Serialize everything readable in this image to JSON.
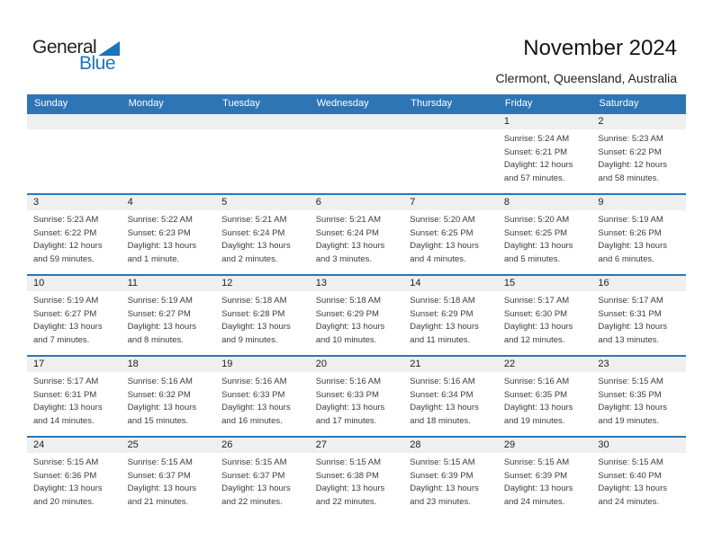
{
  "logo": {
    "part1": "General",
    "part2": "Blue",
    "blue_hex": "#1c75bc",
    "dark_hex": "#231f20"
  },
  "title": "November 2024",
  "subtitle": "Clermont, Queensland, Australia",
  "colors": {
    "accent": "#2e75b6",
    "band": "#efefef",
    "header_text": "#ffffff",
    "logo_blue": "#1c75bc"
  },
  "calendar": {
    "day_headers": [
      "Sunday",
      "Monday",
      "Tuesday",
      "Wednesday",
      "Thursday",
      "Friday",
      "Saturday"
    ],
    "weeks": [
      [
        null,
        null,
        null,
        null,
        null,
        {
          "date": "1",
          "sunrise": "Sunrise: 5:24 AM",
          "sunset": "Sunset: 6:21 PM",
          "daylight": "Daylight: 12 hours and 57 minutes."
        },
        {
          "date": "2",
          "sunrise": "Sunrise: 5:23 AM",
          "sunset": "Sunset: 6:22 PM",
          "daylight": "Daylight: 12 hours and 58 minutes."
        }
      ],
      [
        {
          "date": "3",
          "sunrise": "Sunrise: 5:23 AM",
          "sunset": "Sunset: 6:22 PM",
          "daylight": "Daylight: 12 hours and 59 minutes."
        },
        {
          "date": "4",
          "sunrise": "Sunrise: 5:22 AM",
          "sunset": "Sunset: 6:23 PM",
          "daylight": "Daylight: 13 hours and 1 minute."
        },
        {
          "date": "5",
          "sunrise": "Sunrise: 5:21 AM",
          "sunset": "Sunset: 6:24 PM",
          "daylight": "Daylight: 13 hours and 2 minutes."
        },
        {
          "date": "6",
          "sunrise": "Sunrise: 5:21 AM",
          "sunset": "Sunset: 6:24 PM",
          "daylight": "Daylight: 13 hours and 3 minutes."
        },
        {
          "date": "7",
          "sunrise": "Sunrise: 5:20 AM",
          "sunset": "Sunset: 6:25 PM",
          "daylight": "Daylight: 13 hours and 4 minutes."
        },
        {
          "date": "8",
          "sunrise": "Sunrise: 5:20 AM",
          "sunset": "Sunset: 6:25 PM",
          "daylight": "Daylight: 13 hours and 5 minutes."
        },
        {
          "date": "9",
          "sunrise": "Sunrise: 5:19 AM",
          "sunset": "Sunset: 6:26 PM",
          "daylight": "Daylight: 13 hours and 6 minutes."
        }
      ],
      [
        {
          "date": "10",
          "sunrise": "Sunrise: 5:19 AM",
          "sunset": "Sunset: 6:27 PM",
          "daylight": "Daylight: 13 hours and 7 minutes."
        },
        {
          "date": "11",
          "sunrise": "Sunrise: 5:19 AM",
          "sunset": "Sunset: 6:27 PM",
          "daylight": "Daylight: 13 hours and 8 minutes."
        },
        {
          "date": "12",
          "sunrise": "Sunrise: 5:18 AM",
          "sunset": "Sunset: 6:28 PM",
          "daylight": "Daylight: 13 hours and 9 minutes."
        },
        {
          "date": "13",
          "sunrise": "Sunrise: 5:18 AM",
          "sunset": "Sunset: 6:29 PM",
          "daylight": "Daylight: 13 hours and 10 minutes."
        },
        {
          "date": "14",
          "sunrise": "Sunrise: 5:18 AM",
          "sunset": "Sunset: 6:29 PM",
          "daylight": "Daylight: 13 hours and 11 minutes."
        },
        {
          "date": "15",
          "sunrise": "Sunrise: 5:17 AM",
          "sunset": "Sunset: 6:30 PM",
          "daylight": "Daylight: 13 hours and 12 minutes."
        },
        {
          "date": "16",
          "sunrise": "Sunrise: 5:17 AM",
          "sunset": "Sunset: 6:31 PM",
          "daylight": "Daylight: 13 hours and 13 minutes."
        }
      ],
      [
        {
          "date": "17",
          "sunrise": "Sunrise: 5:17 AM",
          "sunset": "Sunset: 6:31 PM",
          "daylight": "Daylight: 13 hours and 14 minutes."
        },
        {
          "date": "18",
          "sunrise": "Sunrise: 5:16 AM",
          "sunset": "Sunset: 6:32 PM",
          "daylight": "Daylight: 13 hours and 15 minutes."
        },
        {
          "date": "19",
          "sunrise": "Sunrise: 5:16 AM",
          "sunset": "Sunset: 6:33 PM",
          "daylight": "Daylight: 13 hours and 16 minutes."
        },
        {
          "date": "20",
          "sunrise": "Sunrise: 5:16 AM",
          "sunset": "Sunset: 6:33 PM",
          "daylight": "Daylight: 13 hours and 17 minutes."
        },
        {
          "date": "21",
          "sunrise": "Sunrise: 5:16 AM",
          "sunset": "Sunset: 6:34 PM",
          "daylight": "Daylight: 13 hours and 18 minutes."
        },
        {
          "date": "22",
          "sunrise": "Sunrise: 5:16 AM",
          "sunset": "Sunset: 6:35 PM",
          "daylight": "Daylight: 13 hours and 19 minutes."
        },
        {
          "date": "23",
          "sunrise": "Sunrise: 5:15 AM",
          "sunset": "Sunset: 6:35 PM",
          "daylight": "Daylight: 13 hours and 19 minutes."
        }
      ],
      [
        {
          "date": "24",
          "sunrise": "Sunrise: 5:15 AM",
          "sunset": "Sunset: 6:36 PM",
          "daylight": "Daylight: 13 hours and 20 minutes."
        },
        {
          "date": "25",
          "sunrise": "Sunrise: 5:15 AM",
          "sunset": "Sunset: 6:37 PM",
          "daylight": "Daylight: 13 hours and 21 minutes."
        },
        {
          "date": "26",
          "sunrise": "Sunrise: 5:15 AM",
          "sunset": "Sunset: 6:37 PM",
          "daylight": "Daylight: 13 hours and 22 minutes."
        },
        {
          "date": "27",
          "sunrise": "Sunrise: 5:15 AM",
          "sunset": "Sunset: 6:38 PM",
          "daylight": "Daylight: 13 hours and 22 minutes."
        },
        {
          "date": "28",
          "sunrise": "Sunrise: 5:15 AM",
          "sunset": "Sunset: 6:39 PM",
          "daylight": "Daylight: 13 hours and 23 minutes."
        },
        {
          "date": "29",
          "sunrise": "Sunrise: 5:15 AM",
          "sunset": "Sunset: 6:39 PM",
          "daylight": "Daylight: 13 hours and 24 minutes."
        },
        {
          "date": "30",
          "sunrise": "Sunrise: 5:15 AM",
          "sunset": "Sunset: 6:40 PM",
          "daylight": "Daylight: 13 hours and 24 minutes."
        }
      ]
    ]
  }
}
